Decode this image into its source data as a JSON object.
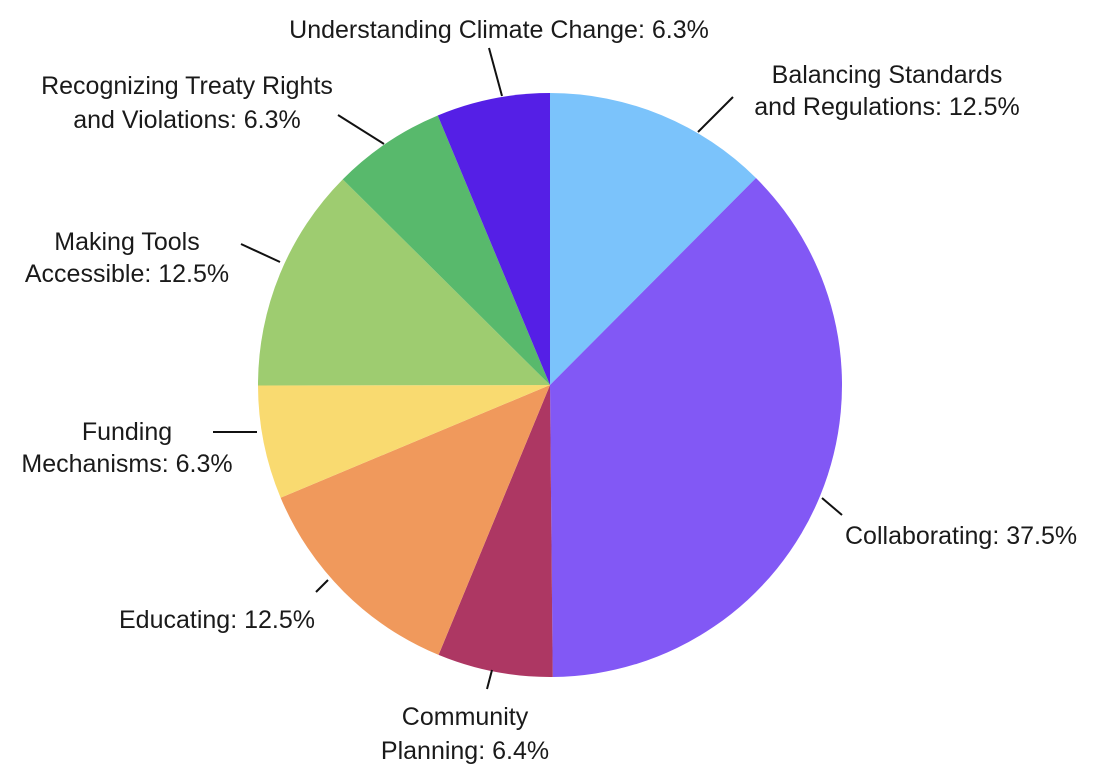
{
  "chart_data": {
    "type": "pie",
    "title": "",
    "slices": [
      {
        "label_lines": [
          "Balancing Standards",
          "and Regulations: 12.5%"
        ],
        "value": 12.5,
        "color": "#7bc3fb"
      },
      {
        "label_lines": [
          "Collaborating: 37.5%"
        ],
        "value": 37.5,
        "color": "#8258f5"
      },
      {
        "label_lines": [
          "Community",
          "Planning: 6.4%"
        ],
        "value": 6.4,
        "color": "#ad3763"
      },
      {
        "label_lines": [
          "Educating: 12.5%"
        ],
        "value": 12.5,
        "color": "#f0995c"
      },
      {
        "label_lines": [
          "Funding",
          "Mechanisms: 6.3%"
        ],
        "value": 6.3,
        "color": "#f9da70"
      },
      {
        "label_lines": [
          "Making Tools",
          "Accessible: 12.5%"
        ],
        "value": 12.5,
        "color": "#9ecc70"
      },
      {
        "label_lines": [
          "Recognizing Treaty Rights",
          "and Violations: 6.3%"
        ],
        "value": 6.3,
        "color": "#58b96c"
      },
      {
        "label_lines": [
          "Understanding Climate Change: 6.3%"
        ],
        "value": 6.3,
        "color": "#551fe6"
      }
    ],
    "start": "top",
    "direction": "clockwise",
    "legend": "none"
  }
}
